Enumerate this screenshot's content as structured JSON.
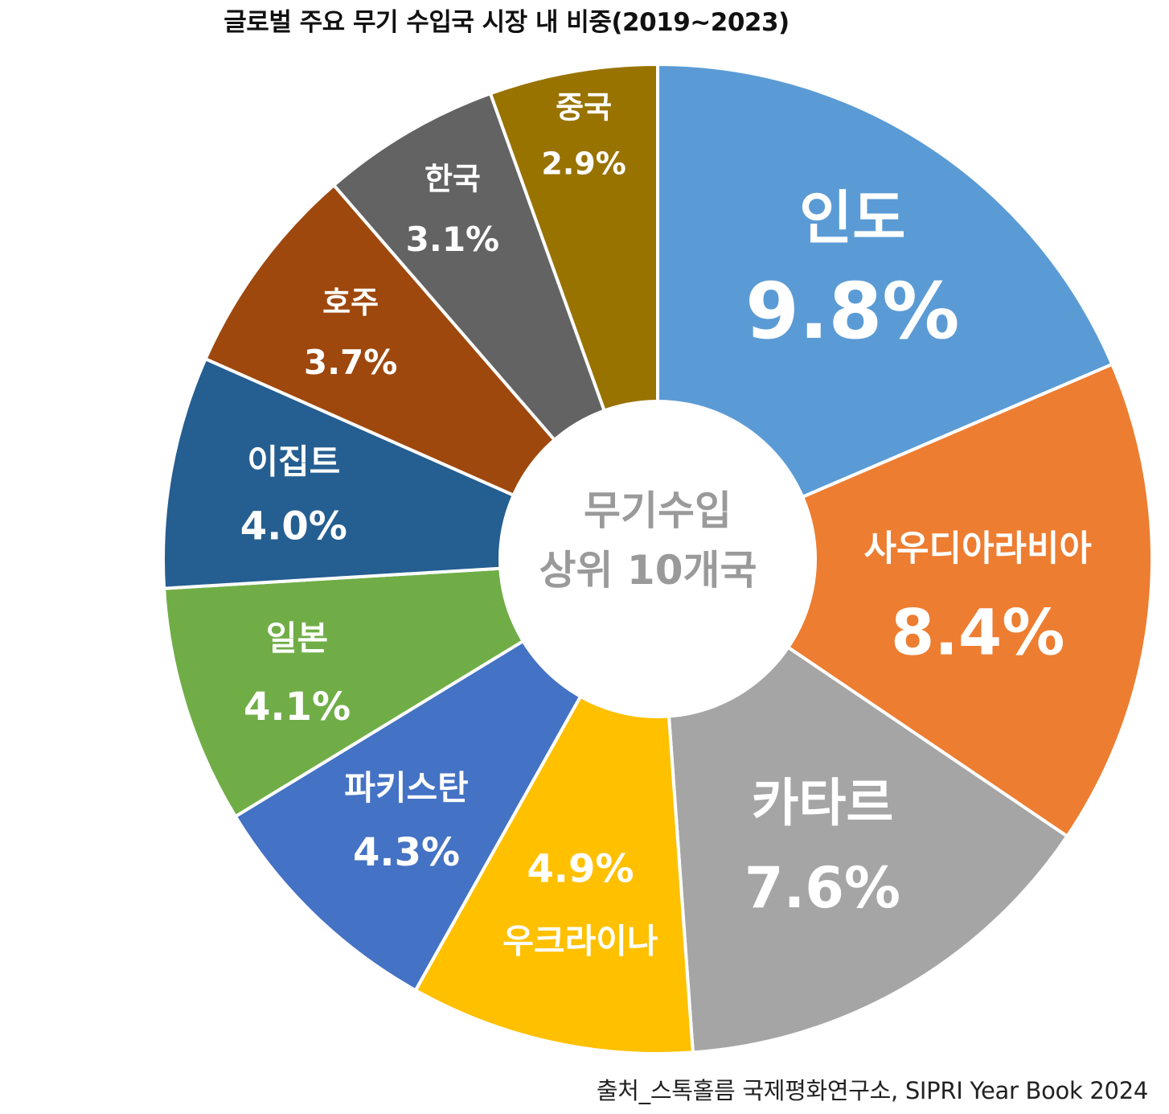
{
  "chart_data": {
    "type": "pie",
    "title": "글로벌 주요 무기 수입국 시장 내 비중(2019~2023)",
    "center_label_line1": "무기수입",
    "center_label_line2": "상위 10개국",
    "source": "출처_스톡홀름 국제평화연구소, SIPRI Year Book 2024",
    "unit": "%",
    "slices": [
      {
        "name": "인도",
        "value": 9.8,
        "label": "9.8%",
        "color": "#5B9BD5"
      },
      {
        "name": "사우디아라비아",
        "value": 8.4,
        "label": "8.4%",
        "color": "#ED7D31"
      },
      {
        "name": "카타르",
        "value": 7.6,
        "label": "7.6%",
        "color": "#A5A5A5"
      },
      {
        "name": "우크라이나",
        "value": 4.9,
        "label": "4.9%",
        "color": "#FFC000"
      },
      {
        "name": "파키스탄",
        "value": 4.3,
        "label": "4.3%",
        "color": "#4472C4"
      },
      {
        "name": "일본",
        "value": 4.1,
        "label": "4.1%",
        "color": "#70AD47"
      },
      {
        "name": "이집트",
        "value": 4.0,
        "label": "4.0%",
        "color": "#255E91"
      },
      {
        "name": "호주",
        "value": 3.7,
        "label": "3.7%",
        "color": "#9E480E"
      },
      {
        "name": "한국",
        "value": 3.1,
        "label": "3.1%",
        "color": "#636363"
      },
      {
        "name": "중국",
        "value": 2.9,
        "label": "2.9%",
        "color": "#997300"
      }
    ]
  }
}
